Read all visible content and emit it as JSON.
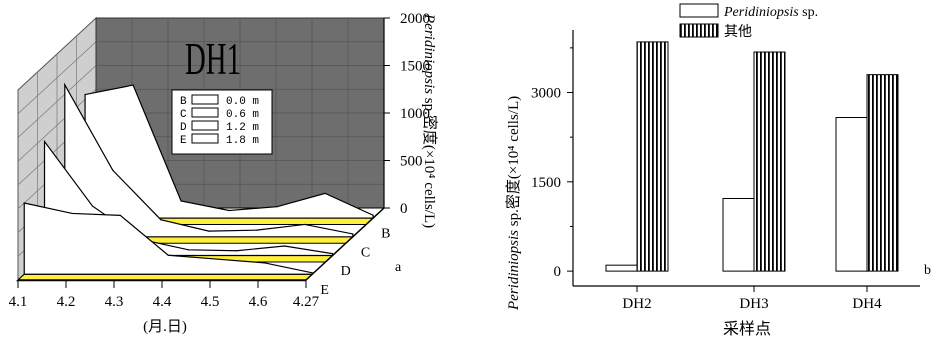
{
  "chart_data": [
    {
      "type": "area",
      "panel_label": "a",
      "title": "DH1",
      "x_ticks": [
        "4.1",
        "4.2",
        "4.3",
        "4.4",
        "4.5",
        "4.6",
        "4.27"
      ],
      "xlabel": "(月.日)",
      "z_ticks": [
        "0",
        "500",
        "1000",
        "1500",
        "2000"
      ],
      "zlabel_italic": "Peridiniopsis",
      "zlabel_rest": " sp.密度(×10⁴ cells/L)",
      "zlim": [
        0,
        2000
      ],
      "legend": [
        {
          "key": "B",
          "label": "0.0 m"
        },
        {
          "key": "C",
          "label": "0.6 m"
        },
        {
          "key": "D",
          "label": "1.2 m"
        },
        {
          "key": "E",
          "label": "1.8 m"
        }
      ],
      "series": [
        {
          "name": "B",
          "values": [
            1300,
            1400,
            180,
            80,
            120,
            260,
            30
          ]
        },
        {
          "name": "C",
          "values": [
            1600,
            700,
            180,
            60,
            70,
            130,
            30
          ]
        },
        {
          "name": "D",
          "values": [
            1200,
            520,
            170,
            60,
            50,
            100,
            20
          ]
        },
        {
          "name": "E",
          "values": [
            750,
            640,
            620,
            200,
            160,
            120,
            15
          ]
        }
      ],
      "colors": {
        "wall": "#6e6e6e",
        "floor": "#ffee3a",
        "ribbon": "#ffffff",
        "side_wall": "#cfcfcf"
      }
    },
    {
      "type": "bar",
      "panel_label": "b",
      "categories": [
        "DH2",
        "DH3",
        "DH4"
      ],
      "xlabel": "采样点",
      "ylabel_italic": "Peridiniopsis",
      "ylabel_rest": " sp.密度(×10⁴ cells/L)",
      "y_ticks": [
        0,
        1500,
        3000
      ],
      "ylim": [
        -250,
        4050
      ],
      "series": [
        {
          "name_italic": "Peridiniopsis",
          "name_rest": " sp.",
          "pattern": "open",
          "values": [
            100,
            1220,
            2580
          ]
        },
        {
          "name": "其他",
          "pattern": "vertical-hatch",
          "values": [
            3850,
            3680,
            3300
          ]
        }
      ]
    }
  ]
}
